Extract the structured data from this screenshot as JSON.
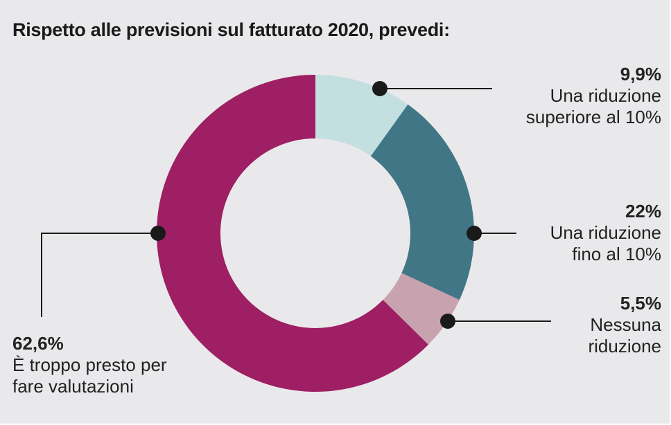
{
  "title": "Rispetto alle previsioni sul fatturato 2020, prevedi:",
  "chart_data": {
    "type": "pie",
    "title": "Rispetto alle previsioni sul fatturato 2020, prevedi:",
    "slices": [
      {
        "value_label": "9,9%",
        "value": 9.9,
        "label_line1": "Una riduzione",
        "label_line2": "superiore al 10%",
        "color": "#c3dfe0"
      },
      {
        "value_label": "22%",
        "value": 22,
        "label_line1": "Una riduzione",
        "label_line2": "fino al 10%",
        "color": "#417686"
      },
      {
        "value_label": "5,5%",
        "value": 5.5,
        "label_line1": "Nessuna",
        "label_line2": "riduzione",
        "color": "#c8a2ae"
      },
      {
        "value_label": "62,6%",
        "value": 62.6,
        "label_line1": "È troppo presto per",
        "label_line2": "fare valutazioni",
        "color": "#9e1f63"
      }
    ]
  }
}
